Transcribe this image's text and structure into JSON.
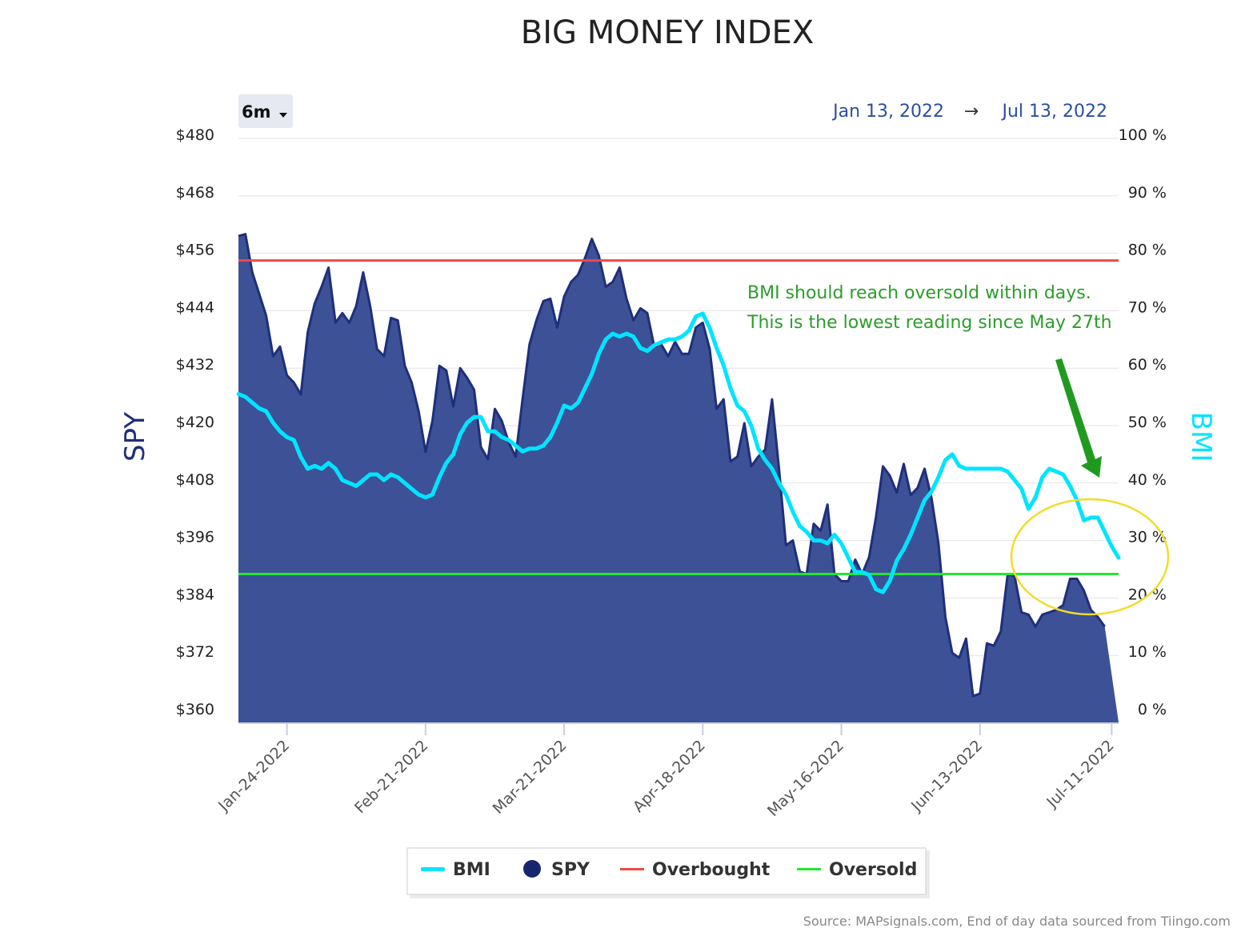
{
  "chart_data": {
    "type": "area",
    "title": "BIG MONEY INDEX",
    "range_selector": "6m",
    "date_range": {
      "from": "Jan 13, 2022",
      "arrow": "→",
      "to": "Jul 13, 2022"
    },
    "ylabel_left": "SPY",
    "ylabel_right": "BMI",
    "y_left_ticks": [
      "$480",
      "$468",
      "$456",
      "$444",
      "$432",
      "$420",
      "$408",
      "$396",
      "$384",
      "$372",
      "$360"
    ],
    "y_left_range": [
      360,
      480
    ],
    "y_right_ticks": [
      "100 %",
      "90 %",
      "80 %",
      "70 %",
      "60 %",
      "50 %",
      "40 %",
      "30 %",
      "20 %",
      "10 %",
      "0 %"
    ],
    "y_right_range": [
      0,
      100
    ],
    "x_tick_labels": [
      {
        "label": "Jan-24-2022",
        "index": 7
      },
      {
        "label": "Feb-21-2022",
        "index": 27
      },
      {
        "label": "Mar-21-2022",
        "index": 47
      },
      {
        "label": "Apr-18-2022",
        "index": 67
      },
      {
        "label": "May-16-2022",
        "index": 87
      },
      {
        "label": "Jun-13-2022",
        "index": 107
      },
      {
        "label": "Jul-11-2022",
        "index": 126
      }
    ],
    "x_count": 128,
    "series": [
      {
        "name": "SPY",
        "kind": "area",
        "axis": "left",
        "color": "#1f2f7a",
        "fill": "#3d5197",
        "values": [
          459.6,
          460.0,
          452.0,
          447.5,
          443.0,
          434.5,
          436.5,
          430.5,
          429.0,
          426.5,
          439.5,
          445.5,
          449.0,
          453.0,
          441.5,
          443.5,
          441.5,
          445.0,
          452.0,
          445.0,
          436.0,
          434.5,
          442.5,
          442.0,
          432.5,
          429.0,
          423.0,
          414.5,
          421.0,
          432.5,
          431.5,
          424.0,
          432.0,
          430.0,
          427.5,
          415.5,
          413.0,
          423.5,
          421.0,
          416.5,
          413.5,
          425.5,
          437.0,
          442.0,
          446.0,
          446.5,
          440.5,
          447.0,
          450.0,
          451.5,
          455.0,
          459.0,
          455.5,
          449.0,
          450.0,
          453.0,
          446.5,
          442.0,
          444.5,
          443.5,
          436.5,
          437.0,
          434.5,
          437.5,
          435.0,
          435.0,
          440.5,
          441.5,
          436.0,
          423.5,
          425.5,
          412.5,
          413.5,
          420.5,
          411.5,
          413.5,
          415.0,
          425.5,
          411.0,
          395.0,
          396.0,
          389.5,
          389.0,
          399.5,
          398.0,
          403.5,
          389.0,
          387.5,
          387.5,
          392.0,
          389.0,
          392.5,
          401.0,
          411.5,
          409.5,
          406.0,
          412.0,
          405.5,
          407.0,
          411.0,
          405.0,
          395.5,
          380.0,
          372.5,
          371.5,
          375.5,
          363.5,
          364.0,
          374.5,
          374.0,
          377.0,
          389.0,
          388.5,
          381.0,
          380.5,
          378.0,
          380.5,
          381.0,
          381.5,
          382.5,
          388.0,
          388.0,
          385.5,
          381.5,
          380.0,
          378.0
        ]
      },
      {
        "name": "BMI",
        "kind": "line",
        "axis": "right",
        "color": "#00e5ff",
        "values": [
          55.5,
          55.0,
          54.0,
          53.0,
          52.5,
          50.5,
          49.0,
          48.0,
          47.5,
          44.5,
          42.5,
          43.0,
          42.5,
          43.5,
          42.5,
          40.5,
          40.0,
          39.5,
          40.5,
          41.5,
          41.5,
          40.5,
          41.5,
          41.0,
          40.0,
          39.0,
          38.0,
          37.5,
          38.0,
          41.0,
          43.5,
          45.0,
          48.5,
          50.5,
          51.5,
          51.5,
          49.0,
          49.0,
          48.0,
          47.5,
          46.5,
          45.5,
          46.0,
          46.0,
          46.5,
          48.0,
          50.5,
          53.5,
          53.0,
          54.0,
          56.5,
          59.0,
          62.5,
          65.0,
          66.0,
          65.5,
          66.0,
          65.5,
          63.5,
          63.0,
          64.0,
          64.5,
          65.0,
          65.0,
          65.5,
          66.5,
          69.0,
          69.5,
          67.0,
          63.5,
          60.5,
          56.5,
          53.5,
          52.5,
          50.0,
          46.0,
          44.0,
          42.5,
          40.0,
          38.0,
          35.0,
          32.5,
          31.5,
          30.0,
          30.0,
          29.5,
          31.0,
          29.5,
          27.0,
          24.5,
          24.5,
          24.0,
          21.5,
          21.0,
          23.0,
          26.5,
          28.5,
          31.0,
          34.0,
          37.0,
          38.5,
          41.0,
          44.0,
          45.0,
          43.0,
          42.5,
          42.5,
          42.5,
          42.5,
          42.5,
          42.5,
          42.0,
          40.5,
          39.0,
          35.5,
          37.5,
          41.0,
          42.5,
          42.0,
          41.5,
          39.5,
          37.0,
          33.5,
          34.0,
          34.0,
          31.5,
          29.0,
          27.0
        ]
      },
      {
        "name": "Overbought",
        "kind": "hline",
        "axis": "left",
        "color": "#f04848",
        "value": 454.5
      },
      {
        "name": "Oversold",
        "kind": "hline",
        "axis": "left",
        "color": "#22e82e",
        "value": 389.0
      }
    ],
    "legend": {
      "position": "bottom-center",
      "items": [
        {
          "name": "BMI",
          "symbol": "line",
          "color": "#00e5ff"
        },
        {
          "name": "SPY",
          "symbol": "dot",
          "color": "#16266e"
        },
        {
          "name": "Overbought",
          "symbol": "line",
          "color": "#f04848"
        },
        {
          "name": "Oversold",
          "symbol": "line",
          "color": "#22e82e"
        }
      ]
    },
    "annotation": {
      "lines": [
        "BMI should reach oversold within days.",
        "This is the lowest reading since May 27th"
      ],
      "color": "#2a9d2a",
      "arrow_color": "#1f9a1f",
      "highlight_color": "#f2dc2a"
    },
    "source": "Source: MAPsignals.com, End of day data sourced from Tiingo.com",
    "grid": true
  }
}
